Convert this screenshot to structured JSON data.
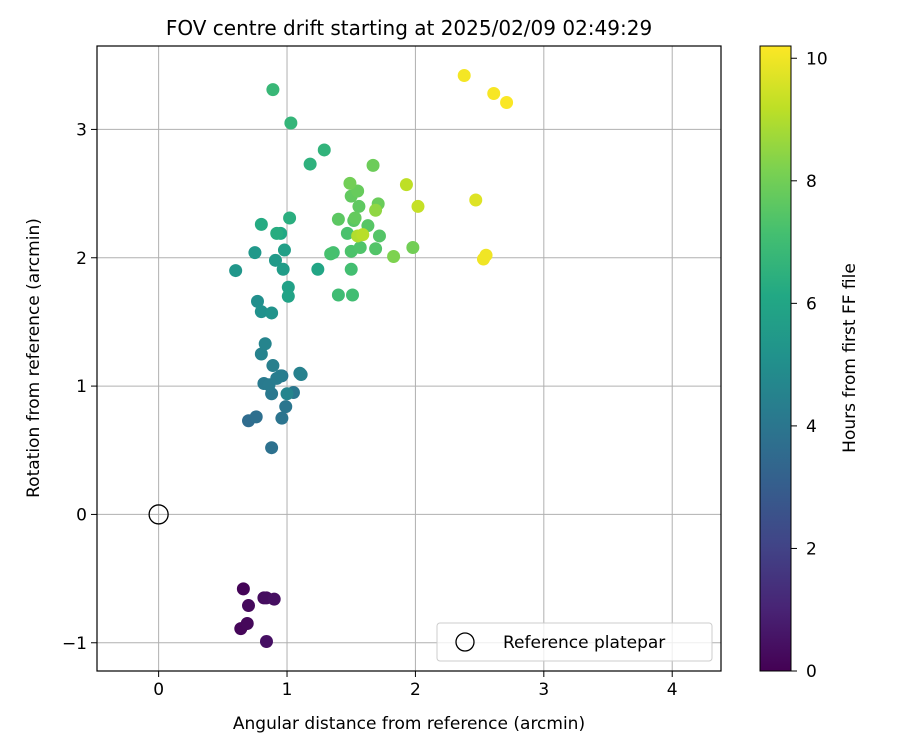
{
  "chart_data": {
    "type": "scatter",
    "title": "FOV centre drift starting at 2025/02/09 02:49:29",
    "xlabel": "Angular distance from reference (arcmin)",
    "ylabel": "Rotation from reference (arcmin)",
    "xlim": [
      -0.48,
      4.38
    ],
    "ylim": [
      -1.22,
      3.65
    ],
    "xticks": [
      0,
      1,
      2,
      3,
      4
    ],
    "yticks": [
      -1,
      0,
      1,
      2,
      3
    ],
    "grid": true,
    "legend": {
      "placement": "lower right",
      "entries": [
        "Reference platepar"
      ]
    },
    "reference_point": {
      "x": 0,
      "y": 0
    },
    "colorbar": {
      "label": "Hours from first FF file",
      "colormap": "viridis",
      "range": [
        0,
        10.2
      ],
      "ticks": [
        0,
        2,
        4,
        6,
        8,
        10
      ]
    },
    "series": [
      {
        "x": [
          0.66,
          0.64,
          0.69,
          0.7,
          0.82,
          0.84,
          0.9,
          0.84
        ],
        "y": [
          -0.58,
          -0.89,
          -0.85,
          -0.71,
          -0.65,
          -0.65,
          -0.66,
          -0.99
        ],
        "c": [
          0.1,
          0.15,
          0.2,
          0.25,
          0.3,
          0.35,
          0.4,
          0.45
        ]
      },
      {
        "x": [
          0.7,
          0.76,
          0.88,
          0.96,
          0.99,
          0.96,
          1.05,
          0.88,
          0.82,
          0.86,
          0.92,
          0.95,
          0.89,
          1.1,
          1.11,
          0.8,
          0.83,
          1.0
        ],
        "y": [
          0.73,
          0.76,
          0.52,
          0.75,
          0.84,
          1.08,
          0.95,
          0.94,
          1.02,
          1.01,
          1.06,
          1.08,
          1.16,
          1.1,
          1.09,
          1.25,
          1.33,
          0.94
        ],
        "c": [
          3.6,
          3.7,
          3.8,
          3.9,
          3.95,
          4.0,
          4.05,
          4.1,
          4.15,
          4.2,
          4.25,
          4.3,
          4.35,
          4.4,
          4.45,
          4.5,
          4.55,
          4.6
        ]
      },
      {
        "x": [
          0.77,
          0.8,
          0.88,
          0.6,
          0.75,
          0.91,
          0.97,
          0.98,
          1.01,
          1.01,
          1.24,
          0.95,
          0.8,
          0.92,
          1.02,
          1.18,
          1.29,
          1.03,
          0.89
        ],
        "y": [
          1.66,
          1.58,
          1.57,
          1.9,
          2.04,
          1.98,
          1.91,
          2.06,
          1.77,
          1.7,
          1.91,
          2.19,
          2.26,
          2.19,
          2.31,
          2.73,
          2.84,
          3.05,
          3.31
        ],
        "c": [
          5.0,
          5.1,
          5.2,
          5.3,
          5.4,
          5.5,
          5.6,
          5.7,
          5.8,
          5.9,
          6.0,
          6.1,
          6.2,
          6.3,
          6.4,
          6.5,
          6.6,
          6.7,
          6.8
        ]
      },
      {
        "x": [
          1.4,
          1.51,
          1.5,
          1.36,
          1.34,
          1.47,
          1.5,
          1.57,
          1.69,
          1.72,
          1.63,
          1.52,
          1.4,
          1.56,
          1.5,
          1.53,
          1.55,
          1.71,
          1.67,
          1.98,
          1.83,
          1.69,
          1.49
        ],
        "y": [
          1.71,
          1.71,
          1.91,
          2.04,
          2.03,
          2.19,
          2.05,
          2.08,
          2.07,
          2.17,
          2.25,
          2.29,
          2.3,
          2.4,
          2.48,
          2.31,
          2.52,
          2.42,
          2.72,
          2.08,
          2.01,
          2.37,
          2.58
        ],
        "c": [
          7.0,
          7.05,
          7.1,
          7.15,
          7.2,
          7.25,
          7.3,
          7.35,
          7.4,
          7.45,
          7.5,
          7.55,
          7.6,
          7.65,
          7.7,
          7.75,
          7.8,
          7.85,
          7.9,
          8.0,
          8.2,
          8.5,
          8.0
        ]
      },
      {
        "x": [
          1.55,
          1.59,
          1.93,
          2.02,
          2.47,
          2.53,
          2.55,
          2.38,
          2.61,
          2.71
        ],
        "y": [
          2.17,
          2.18,
          2.57,
          2.4,
          2.45,
          1.99,
          2.02,
          3.42,
          3.28,
          3.21
        ],
        "c": [
          9.0,
          9.1,
          9.2,
          9.3,
          9.7,
          10.0,
          10.0,
          10.05,
          10.1,
          10.15
        ]
      }
    ]
  }
}
